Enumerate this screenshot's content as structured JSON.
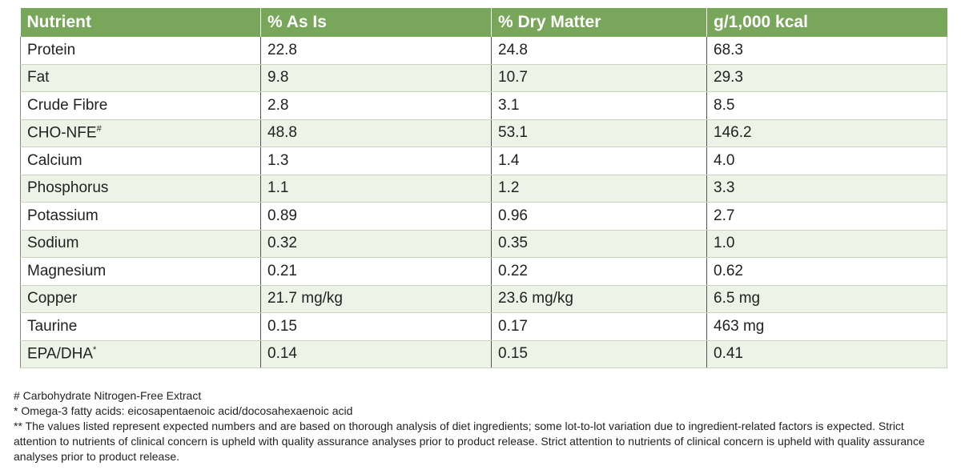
{
  "table": {
    "header": [
      "Nutrient",
      "% As Is",
      "% Dry Matter",
      "g/1,000 kcal"
    ],
    "rows": [
      [
        {
          "text": "Protein"
        },
        "22.8",
        "24.8",
        "68.3"
      ],
      [
        {
          "text": "Fat"
        },
        "9.8",
        "10.7",
        "29.3"
      ],
      [
        {
          "text": "Crude Fibre"
        },
        "2.8",
        "3.1",
        "8.5"
      ],
      [
        {
          "text": "CHO-NFE",
          "sup": "#"
        },
        "48.8",
        "53.1",
        "146.2"
      ],
      [
        {
          "text": "Calcium"
        },
        "1.3",
        "1.4",
        "4.0"
      ],
      [
        {
          "text": "Phosphorus"
        },
        "1.1",
        "1.2",
        "3.3"
      ],
      [
        {
          "text": "Potassium"
        },
        "0.89",
        "0.96",
        "2.7"
      ],
      [
        {
          "text": "Sodium"
        },
        "0.32",
        "0.35",
        "1.0"
      ],
      [
        {
          "text": "Magnesium"
        },
        "0.21",
        "0.22",
        "0.62"
      ],
      [
        {
          "text": "Copper"
        },
        "21.7 mg/kg",
        "23.6 mg/kg",
        "6.5 mg"
      ],
      [
        {
          "text": "Taurine"
        },
        "0.15",
        "0.17",
        "463 mg"
      ],
      [
        {
          "text": "EPA/DHA",
          "sup": "*"
        },
        "0.14",
        "0.15",
        "0.41"
      ]
    ]
  },
  "footnotes": [
    "# Carbohydrate Nitrogen-Free Extract",
    "* Omega-3 fatty acids: eicosapentaenoic acid/docosahexaenoic acid",
    "** The values listed represent expected numbers and are based on thorough analysis of diet ingredients; some lot-to-lot variation due to ingredient-related factors is expected. Strict attention to nutrients of clinical concern is upheld with quality assurance analyses prior to product release. Strict attention to nutrients of clinical concern is upheld with quality assurance analyses prior to product release."
  ]
}
